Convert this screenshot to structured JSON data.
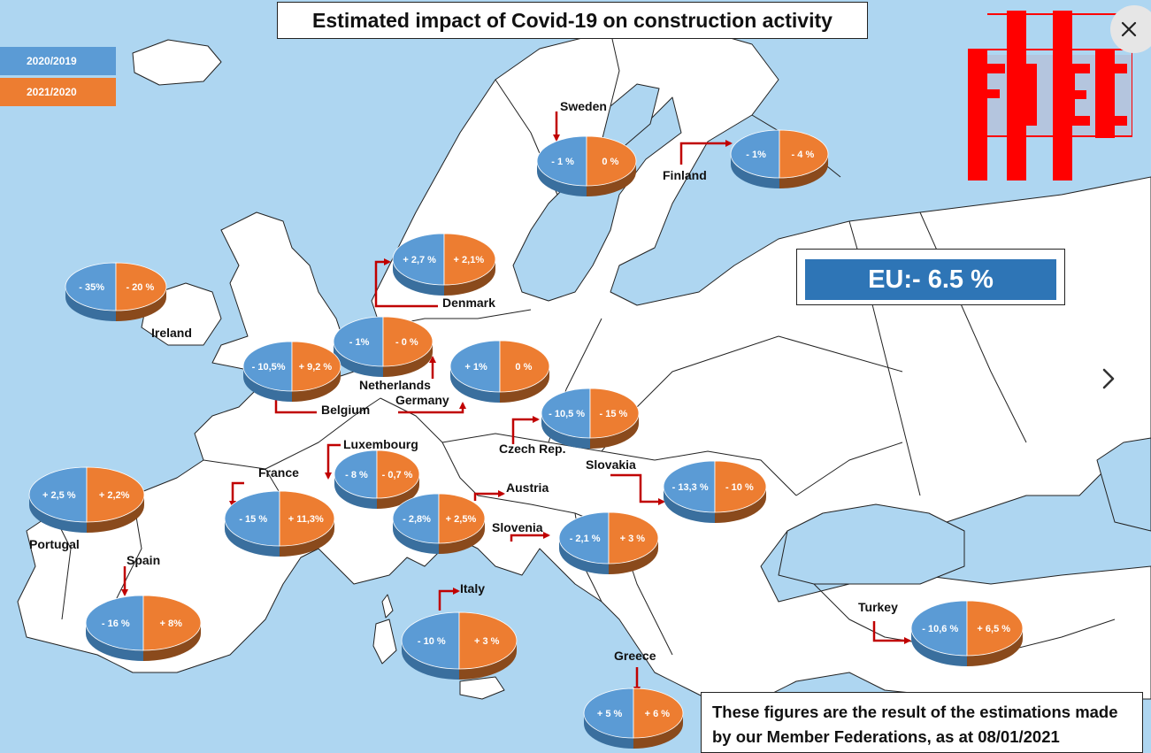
{
  "title": "Estimated impact of Covid-19 on construction activity",
  "legend": [
    {
      "label": "2020/2019",
      "color": "#5b9bd5"
    },
    {
      "label": "2021/2020",
      "color": "#ed7d31"
    }
  ],
  "logo": {
    "text": "FIEC",
    "color": "#ff0000"
  },
  "eu_summary": "EU:- 6.5 %",
  "note_lines": [
    "These figures are the result of the estimations made",
    "by our Member Federations, as at 08/01/2021"
  ],
  "controls": {
    "close_icon": "close-icon",
    "next_icon": "chevron-right-icon"
  },
  "colors": {
    "sea": "#aed6f1",
    "land": "#ffffff",
    "border": "#222222",
    "arrow": "#c00000",
    "blue": "#5b9bd5",
    "orange": "#ed7d31"
  },
  "countries": [
    {
      "name": "Sweden",
      "v2020": "- 1 %",
      "v2021": "0 %"
    },
    {
      "name": "Finland",
      "v2020": "- 1%",
      "v2021": "- 4 %"
    },
    {
      "name": "Denmark",
      "v2020": "+ 2,7 %",
      "v2021": "+ 2,1%"
    },
    {
      "name": "Ireland",
      "v2020": "- 35%",
      "v2021": "- 20 %"
    },
    {
      "name": "Netherlands",
      "v2020": "- 1%",
      "v2021": "- 0 %"
    },
    {
      "name": "Belgium",
      "v2020": "- 10,5%",
      "v2021": "+ 9,2 %"
    },
    {
      "name": "Germany",
      "v2020": "+ 1%",
      "v2021": "0 %"
    },
    {
      "name": "Czech Rep.",
      "v2020": "- 10,5 %",
      "v2021": "- 15 %"
    },
    {
      "name": "Luxembourg",
      "v2020": "- 8 %",
      "v2021": "- 0,7 %"
    },
    {
      "name": "Portugal",
      "v2020": "+ 2,5 %",
      "v2021": "+ 2,2%"
    },
    {
      "name": "France",
      "v2020": "- 15 %",
      "v2021": "+ 11,3%"
    },
    {
      "name": "Austria",
      "v2020": "- 2,8%",
      "v2021": "+ 2,5%"
    },
    {
      "name": "Slovakia",
      "v2020": "- 13,3 %",
      "v2021": "- 10 %"
    },
    {
      "name": "Slovenia",
      "v2020": "- 2,1 %",
      "v2021": "+ 3 %"
    },
    {
      "name": "Spain",
      "v2020": "- 16 %",
      "v2021": "+ 8%"
    },
    {
      "name": "Italy",
      "v2020": "- 10 %",
      "v2021": "+ 3 %"
    },
    {
      "name": "Turkey",
      "v2020": "- 10,6 %",
      "v2021": "+ 6,5 %"
    },
    {
      "name": "Greece",
      "v2020": "+ 5 %",
      "v2021": "+ 6 %"
    }
  ]
}
